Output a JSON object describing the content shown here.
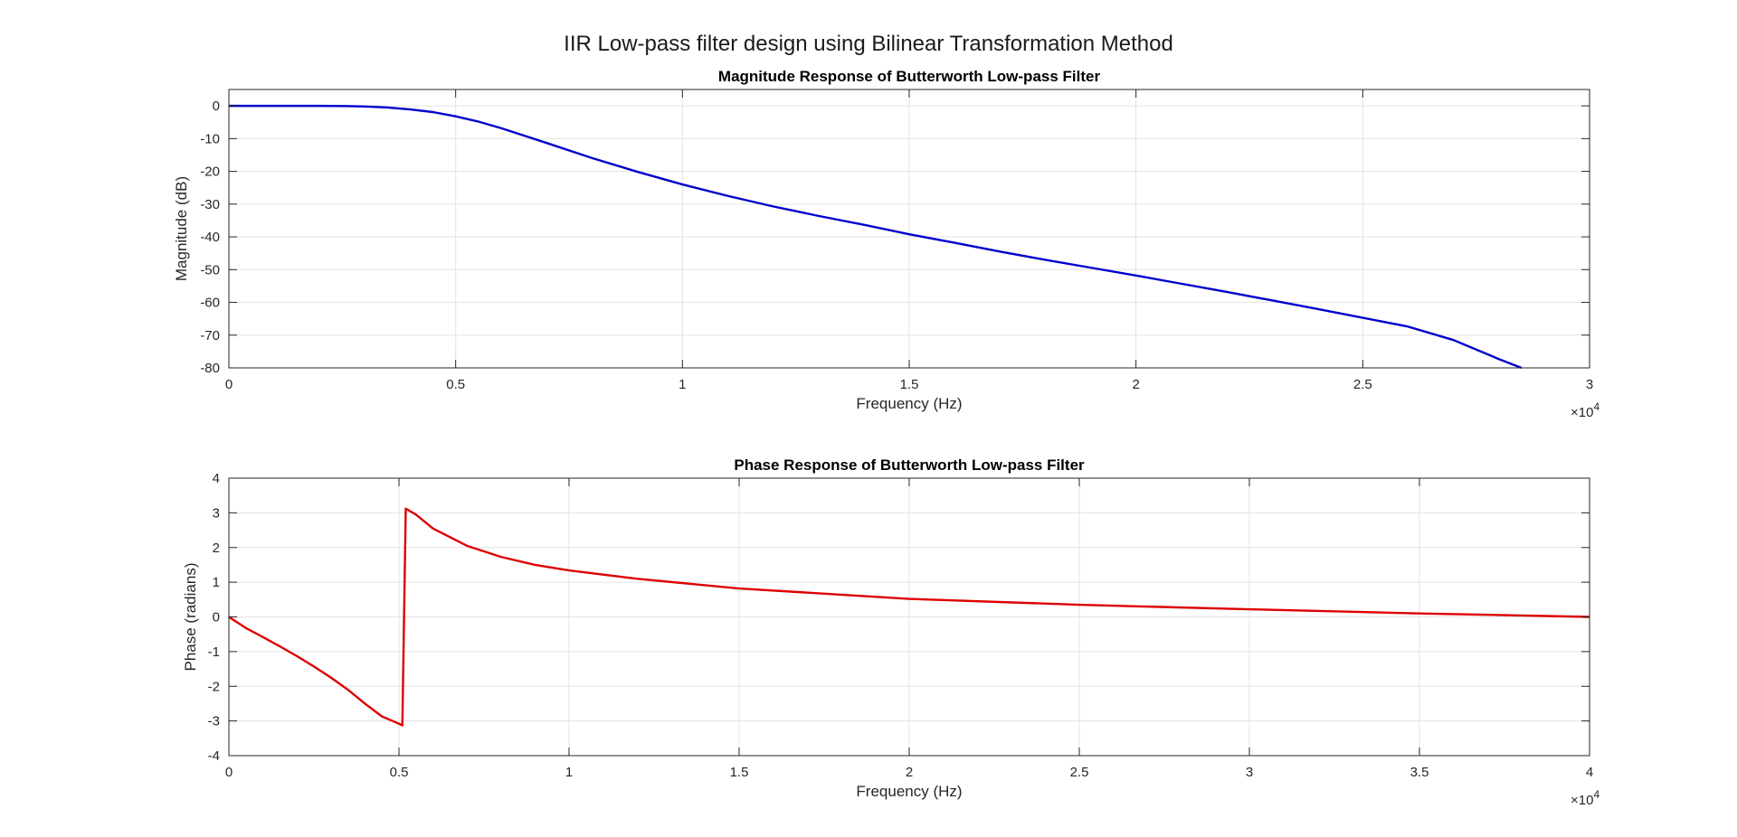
{
  "figure": {
    "title": "IIR Low-pass filter design using Bilinear Transformation Method"
  },
  "chart_data": [
    {
      "type": "line",
      "title": "Magnitude Response of Butterworth Low-pass Filter",
      "xlabel": "Frequency (Hz)",
      "ylabel": "Magnitude (dB)",
      "xlim": [
        0,
        30000
      ],
      "ylim": [
        -80,
        5
      ],
      "x_exponent_label": "×10",
      "x_exponent_power": "4",
      "xticks": [
        0,
        5000,
        10000,
        15000,
        20000,
        25000,
        30000
      ],
      "xtick_labels": [
        "0",
        "0.5",
        "1",
        "1.5",
        "2",
        "2.5",
        "3"
      ],
      "yticks": [
        0,
        -10,
        -20,
        -30,
        -40,
        -50,
        -60,
        -70,
        -80
      ],
      "ytick_labels": [
        "0",
        "-10",
        "-20",
        "-30",
        "-40",
        "-50",
        "-60",
        "-70",
        "-80"
      ],
      "grid": true,
      "series": [
        {
          "color": "#0000cc",
          "x": [
            0,
            1000,
            2000,
            2500,
            3000,
            3500,
            4000,
            4500,
            5000,
            5500,
            6000,
            7000,
            8000,
            9000,
            10000,
            11000,
            12000,
            13000,
            14000,
            15000,
            16000,
            17000,
            18000,
            19000,
            20000,
            21000,
            22000,
            23000,
            24000,
            25000,
            26000,
            27000,
            28000,
            28500
          ],
          "y": [
            0,
            0,
            0,
            -0.05,
            -0.2,
            -0.5,
            -1.1,
            -1.9,
            -3.2,
            -4.8,
            -6.8,
            -11.3,
            -15.9,
            -20.1,
            -24,
            -27.5,
            -30.7,
            -33.6,
            -36.3,
            -39.2,
            -41.8,
            -44.5,
            -47,
            -49.4,
            -51.8,
            -54.3,
            -56.8,
            -59.4,
            -62,
            -64.7,
            -67.4,
            -71.5,
            -77.3,
            -80
          ]
        }
      ]
    },
    {
      "type": "line",
      "title": "Phase Response of Butterworth Low-pass Filter",
      "xlabel": "Frequency (Hz)",
      "ylabel": "Phase (radians)",
      "xlim": [
        0,
        40000
      ],
      "ylim": [
        -4,
        4
      ],
      "x_exponent_label": "×10",
      "x_exponent_power": "4",
      "xticks": [
        0,
        5000,
        10000,
        15000,
        20000,
        25000,
        30000,
        35000,
        40000
      ],
      "xtick_labels": [
        "0",
        "0.5",
        "1",
        "1.5",
        "2",
        "2.5",
        "3",
        "3.5",
        "4"
      ],
      "yticks": [
        4,
        3,
        2,
        1,
        0,
        -1,
        -2,
        -3,
        -4
      ],
      "ytick_labels": [
        "4",
        "3",
        "2",
        "1",
        "0",
        "-1",
        "-2",
        "-3",
        "-4"
      ],
      "grid": true,
      "series": [
        {
          "color": "#dd0000",
          "x": [
            0,
            500,
            1000,
            1500,
            2000,
            2500,
            3000,
            3500,
            4000,
            4500,
            5000,
            5100,
            5200,
            5500,
            6000,
            7000,
            8000,
            9000,
            10000,
            12000,
            15000,
            20000,
            25000,
            30000,
            35000,
            40000
          ],
          "y": [
            0,
            -0.32,
            -0.58,
            -0.85,
            -1.13,
            -1.43,
            -1.75,
            -2.1,
            -2.5,
            -2.87,
            -3.08,
            -3.13,
            3.12,
            2.95,
            2.55,
            2.05,
            1.73,
            1.5,
            1.34,
            1.1,
            0.82,
            0.52,
            0.35,
            0.22,
            0.1,
            0
          ]
        }
      ]
    }
  ]
}
